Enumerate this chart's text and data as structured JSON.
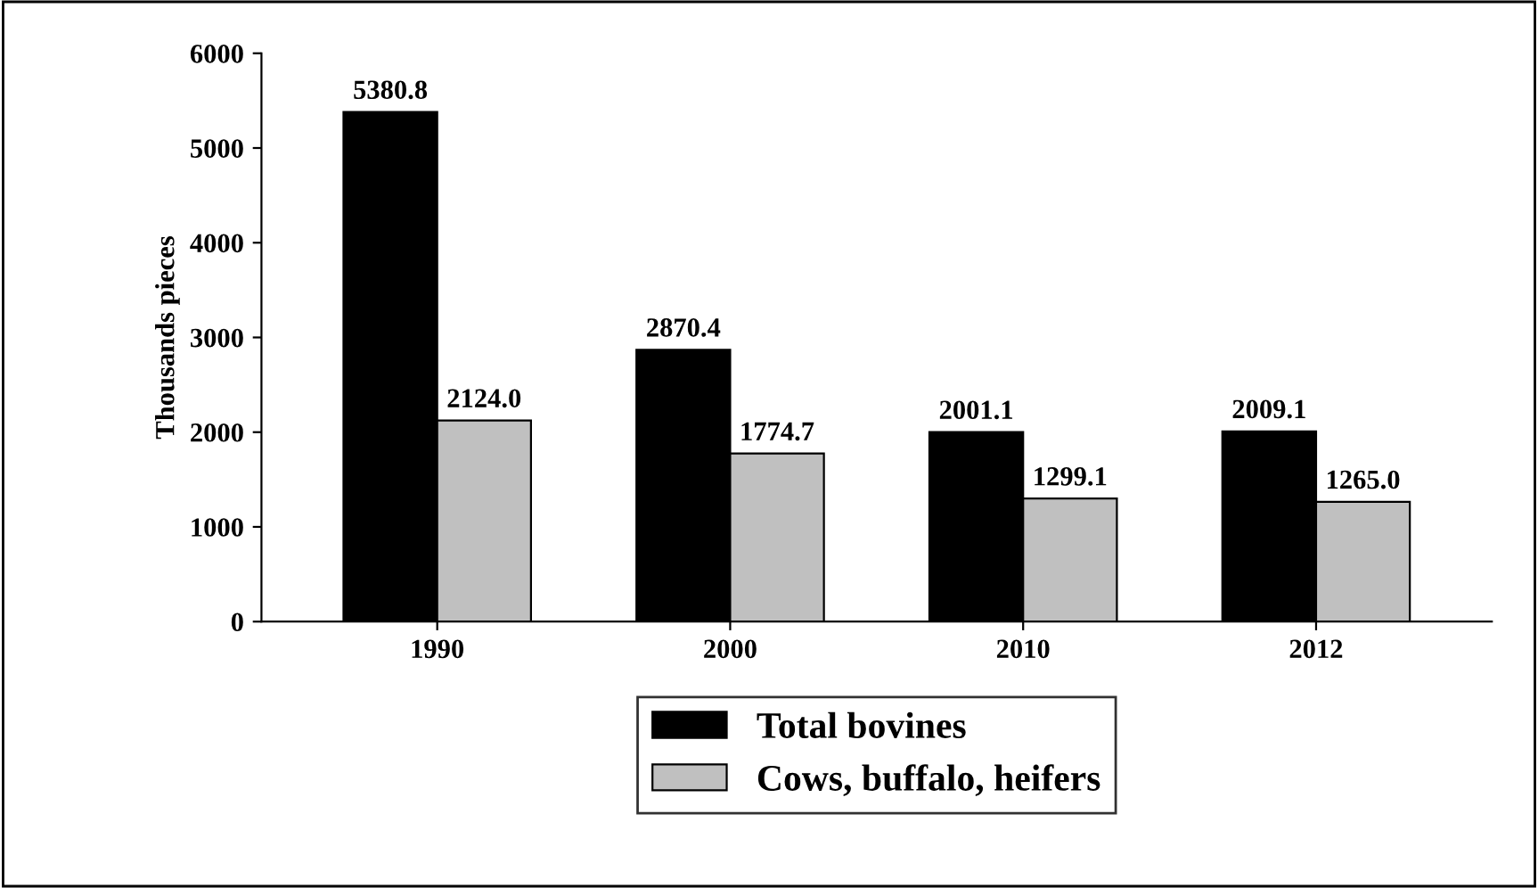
{
  "chart_data": {
    "type": "bar",
    "ylabel": "Thousands pieces",
    "categories": [
      "1990",
      "2000",
      "2010",
      "2012"
    ],
    "series": [
      {
        "name": "Total bovines",
        "color": "#000000",
        "values": [
          5380.8,
          2870.4,
          2001.1,
          2009.1
        ],
        "value_labels": [
          "5380.8",
          "2870.4",
          "2001.1",
          "2009.1"
        ]
      },
      {
        "name": "Cows, buffalo, heifers",
        "color": "#c0c0c0",
        "values": [
          2124.0,
          1774.7,
          1299.1,
          1265.0
        ],
        "value_labels": [
          "2124.0",
          "1774.7",
          "1299.1",
          "1265.0"
        ]
      }
    ],
    "ylim": [
      0,
      6000
    ],
    "yticks": [
      0,
      1000,
      2000,
      3000,
      4000,
      5000,
      6000
    ],
    "grid": false,
    "legend": "bottom"
  }
}
